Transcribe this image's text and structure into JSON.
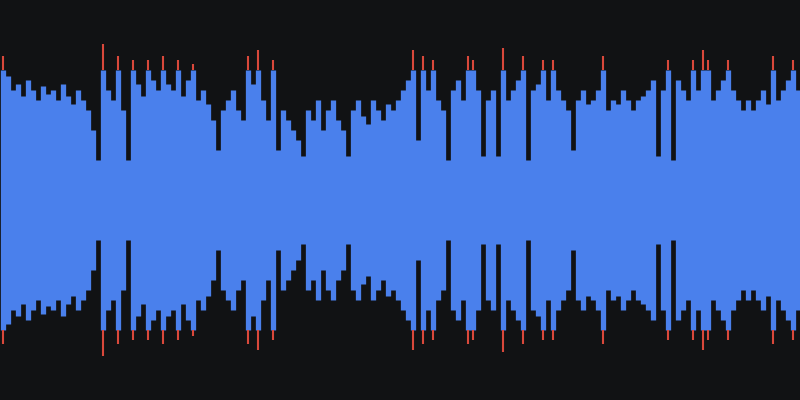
{
  "chart_data": {
    "type": "waveform",
    "color": "#4a80ec",
    "clip_level": 0.65,
    "xlim": [
      -0.5,
      159.5
    ],
    "ylim": [
      -1,
      1
    ],
    "xticks": [],
    "yticks": [],
    "tick_labels": false,
    "grid": false,
    "values": [
      0.72,
      0.62,
      0.55,
      0.58,
      0.52,
      0.6,
      0.55,
      0.5,
      0.57,
      0.53,
      0.55,
      0.5,
      0.58,
      0.52,
      0.48,
      0.55,
      0.5,
      0.45,
      0.35,
      0.2,
      0.78,
      0.55,
      0.5,
      0.72,
      0.45,
      0.2,
      0.7,
      0.58,
      0.52,
      0.7,
      0.6,
      0.55,
      0.72,
      0.58,
      0.55,
      0.7,
      0.52,
      0.6,
      0.68,
      0.5,
      0.55,
      0.48,
      0.4,
      0.25,
      0.45,
      0.5,
      0.55,
      0.45,
      0.4,
      0.72,
      0.58,
      0.75,
      0.5,
      0.4,
      0.7,
      0.25,
      0.45,
      0.4,
      0.35,
      0.3,
      0.22,
      0.45,
      0.4,
      0.5,
      0.35,
      0.45,
      0.5,
      0.4,
      0.35,
      0.22,
      0.45,
      0.5,
      0.42,
      0.38,
      0.5,
      0.45,
      0.4,
      0.48,
      0.45,
      0.5,
      0.55,
      0.6,
      0.75,
      0.3,
      0.72,
      0.55,
      0.7,
      0.5,
      0.45,
      0.2,
      0.55,
      0.6,
      0.5,
      0.72,
      0.7,
      0.55,
      0.22,
      0.5,
      0.55,
      0.22,
      0.76,
      0.5,
      0.55,
      0.6,
      0.72,
      0.2,
      0.55,
      0.58,
      0.7,
      0.5,
      0.7,
      0.55,
      0.5,
      0.45,
      0.25,
      0.5,
      0.55,
      0.48,
      0.5,
      0.55,
      0.72,
      0.45,
      0.5,
      0.48,
      0.55,
      0.5,
      0.45,
      0.5,
      0.52,
      0.55,
      0.6,
      0.22,
      0.55,
      0.7,
      0.2,
      0.6,
      0.55,
      0.5,
      0.7,
      0.55,
      0.75,
      0.7,
      0.5,
      0.55,
      0.6,
      0.7,
      0.55,
      0.5,
      0.45,
      0.5,
      0.45,
      0.5,
      0.55,
      0.48,
      0.72,
      0.5,
      0.55,
      0.6,
      0.7,
      0.55
    ]
  }
}
